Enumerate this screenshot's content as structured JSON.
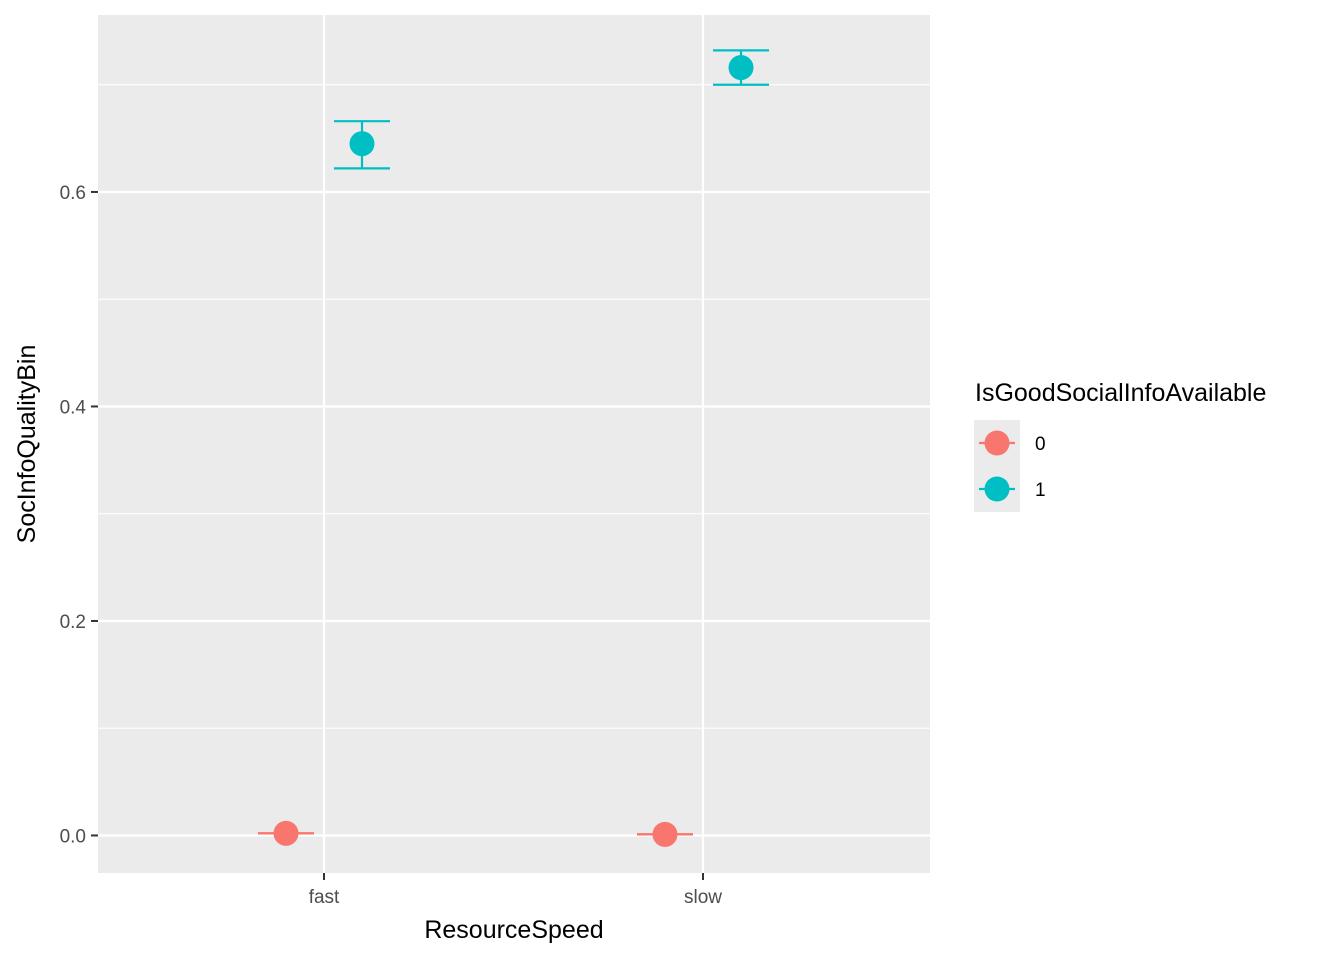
{
  "chart_data": {
    "type": "scatter",
    "title": "",
    "xlabel": "ResourceSpeed",
    "ylabel": "SocInfoQualityBin",
    "categories": [
      "fast",
      "slow"
    ],
    "ylim": [
      -0.035,
      0.765
    ],
    "y_ticks": [
      0.0,
      0.2,
      0.4,
      0.6
    ],
    "y_tick_labels": [
      "0.0",
      "0.2",
      "0.4",
      "0.6"
    ],
    "grid": true,
    "legend": {
      "title": "IsGoodSocialInfoAvailable",
      "position": "right"
    },
    "series": [
      {
        "name": "0",
        "color": "#F8766D",
        "values": [
          0.002,
          0.001
        ],
        "lower": [
          0.002,
          0.001
        ],
        "upper": [
          0.002,
          0.001
        ]
      },
      {
        "name": "1",
        "color": "#00BFC4",
        "values": [
          0.645,
          0.716
        ],
        "lower": [
          0.622,
          0.7
        ],
        "upper": [
          0.666,
          0.732
        ]
      }
    ]
  }
}
